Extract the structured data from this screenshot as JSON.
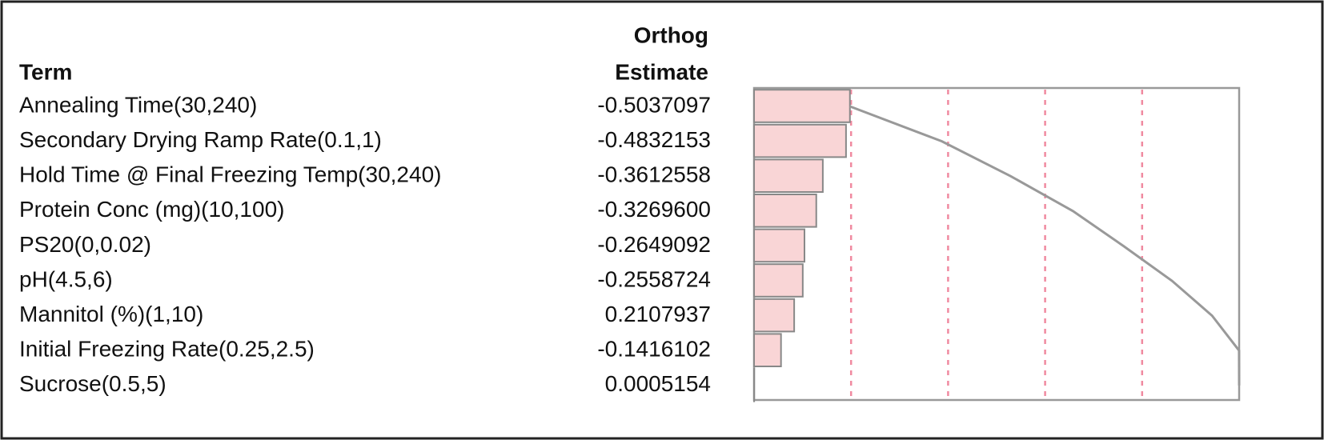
{
  "chart_data": {
    "type": "pareto",
    "term_header": "Term",
    "estimate_header": [
      "Orthog",
      "Estimate"
    ],
    "categories": [
      "Annealing Time(30,240)",
      "Secondary Drying Ramp Rate(0.1,1)",
      "Hold Time @ Final Freezing Temp(30,240)",
      "Protein Conc (mg)(10,100)",
      "PS20(0,0.02)",
      "pH(4.5,6)",
      "Mannitol (%)(1,10)",
      "Initial Freezing Rate(0.25,2.5)",
      "Sucrose(0.5,5)"
    ],
    "values": [
      -0.5037097,
      -0.4832153,
      -0.3612558,
      -0.32696,
      -0.2649092,
      -0.2558724,
      0.2107937,
      -0.1416102,
      0.0005154
    ],
    "value_labels": [
      "-0.5037097",
      "-0.4832153",
      "-0.3612558",
      "-0.3269600",
      "-0.2649092",
      "-0.2558724",
      "0.2107937",
      "-0.1416102",
      "0.0005154"
    ],
    "color": "#f9d5d6",
    "curve_color": "#999999",
    "reference_line_color": "#f08aa0"
  }
}
